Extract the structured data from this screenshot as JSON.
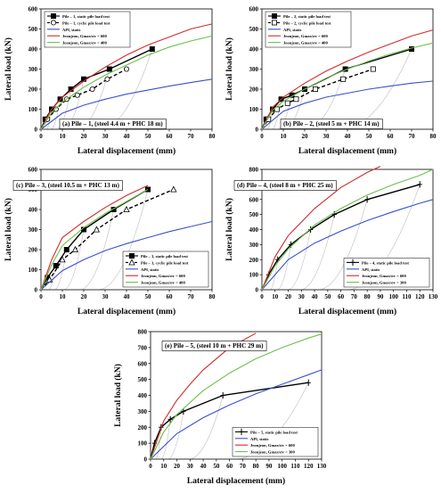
{
  "chart_data": [
    {
      "type": "line",
      "panel_label": "(a) Pile – 1, (steel 4.4 m + PHC 18 m)",
      "xlabel": "Lateral displacement (mm)",
      "ylabel": "Lateral load (kN)",
      "xlim": [
        0,
        80
      ],
      "ylim": [
        0,
        600
      ],
      "xticks": [
        0,
        10,
        20,
        30,
        40,
        50,
        60,
        70,
        80
      ],
      "yticks": [
        0,
        100,
        200,
        300,
        400,
        500,
        600
      ],
      "grid": false,
      "legend_position": "top-left",
      "series": [
        {
          "name": "Pile – 1, static pile load test",
          "color": "#000000",
          "style": "solid",
          "marker": "square-filled",
          "x": [
            0,
            2,
            5,
            9,
            14,
            20,
            32,
            52
          ],
          "y": [
            0,
            50,
            100,
            150,
            200,
            250,
            300,
            400
          ]
        },
        {
          "name": "Pile – 1, cyclic pile load test",
          "color": "#000000",
          "style": "dashed",
          "marker": "circle-open",
          "x": [
            0,
            3,
            7,
            12,
            17,
            24,
            31,
            40
          ],
          "y": [
            0,
            50,
            100,
            150,
            170,
            200,
            250,
            300
          ]
        },
        {
          "name": "API, static",
          "color": "#3a4fd0",
          "style": "solid",
          "x": [
            0,
            10,
            20,
            30,
            40,
            50,
            60,
            70,
            80
          ],
          "y": [
            0,
            80,
            120,
            150,
            175,
            195,
            215,
            233,
            250
          ]
        },
        {
          "name": "Jeonjeon, Gmax/σv = 600",
          "color": "#d02a2a",
          "style": "solid",
          "x": [
            0,
            5,
            10,
            20,
            30,
            40,
            50,
            60,
            70,
            80
          ],
          "y": [
            0,
            100,
            160,
            240,
            310,
            370,
            420,
            460,
            500,
            525
          ]
        },
        {
          "name": "Jeonjeon, Gmax/σv = 400",
          "color": "#6cc04a",
          "style": "solid",
          "x": [
            0,
            5,
            10,
            20,
            30,
            40,
            50,
            60,
            70,
            80
          ],
          "y": [
            0,
            85,
            135,
            210,
            270,
            320,
            370,
            410,
            440,
            465
          ]
        }
      ]
    },
    {
      "type": "line",
      "panel_label": "(b) Pile – 2, (steel 5 m + PHC 14 m)",
      "xlabel": "Lateral displacement (mm)",
      "ylabel": "Lateral load (kN)",
      "xlim": [
        0,
        80
      ],
      "ylim": [
        0,
        600
      ],
      "xticks": [
        0,
        10,
        20,
        30,
        40,
        50,
        60,
        70,
        80
      ],
      "yticks": [
        0,
        100,
        200,
        300,
        400,
        500,
        600
      ],
      "grid": false,
      "legend_position": "top-left",
      "series": [
        {
          "name": "Pile – 2, static pile load test",
          "color": "#000000",
          "style": "solid",
          "marker": "square-filled",
          "x": [
            0,
            2,
            5,
            9,
            14,
            20,
            39,
            70
          ],
          "y": [
            0,
            50,
            100,
            150,
            170,
            200,
            300,
            400
          ]
        },
        {
          "name": "Pile – 2, cyclic pile load test",
          "color": "#000000",
          "style": "dashed",
          "marker": "square-open",
          "x": [
            0,
            3,
            7,
            12,
            16,
            25,
            38,
            52
          ],
          "y": [
            0,
            50,
            100,
            130,
            150,
            200,
            250,
            300
          ]
        },
        {
          "name": "API, static",
          "color": "#3a4fd0",
          "style": "solid",
          "x": [
            0,
            10,
            20,
            30,
            40,
            50,
            60,
            70,
            80
          ],
          "y": [
            0,
            90,
            130,
            160,
            180,
            200,
            215,
            230,
            240
          ]
        },
        {
          "name": "Jeonjeon, Gmax/σv = 600",
          "color": "#d02a2a",
          "style": "solid",
          "x": [
            0,
            5,
            10,
            20,
            30,
            40,
            50,
            60,
            70,
            80
          ],
          "y": [
            0,
            110,
            160,
            230,
            290,
            340,
            385,
            425,
            465,
            495
          ]
        },
        {
          "name": "Jeonjeon, Gmax/σv = 400",
          "color": "#6cc04a",
          "style": "solid",
          "x": [
            0,
            5,
            10,
            20,
            30,
            40,
            50,
            60,
            70,
            80
          ],
          "y": [
            0,
            95,
            140,
            200,
            255,
            300,
            340,
            375,
            405,
            430
          ]
        }
      ]
    },
    {
      "type": "line",
      "panel_label": "(c) Pile – 3, (steel 10.5 m + PHC 13 m)",
      "xlabel": "Lateral displacement (mm)",
      "ylabel": "Lateral load (kN)",
      "xlim": [
        0,
        80
      ],
      "ylim": [
        0,
        600
      ],
      "xticks": [
        0,
        10,
        20,
        30,
        40,
        50,
        60,
        70,
        80
      ],
      "yticks": [
        0,
        100,
        200,
        300,
        400,
        500,
        600
      ],
      "grid": false,
      "legend_position": "bottom-right",
      "series": [
        {
          "name": "Pile – 3, static pile load test",
          "color": "#000000",
          "style": "solid",
          "marker": "square-filled",
          "x": [
            0,
            3,
            7,
            12,
            20,
            34,
            50
          ],
          "y": [
            0,
            60,
            120,
            200,
            300,
            400,
            500
          ]
        },
        {
          "name": "Pile – 3, cyclic pile load test",
          "color": "#000000",
          "style": "dashed",
          "marker": "triangle-open",
          "x": [
            0,
            4,
            10,
            16,
            26,
            40,
            62
          ],
          "y": [
            0,
            50,
            150,
            200,
            300,
            400,
            500
          ]
        },
        {
          "name": "API, static",
          "color": "#3a4fd0",
          "style": "solid",
          "x": [
            0,
            10,
            20,
            30,
            40,
            50,
            60,
            70,
            80
          ],
          "y": [
            0,
            95,
            150,
            195,
            230,
            260,
            290,
            315,
            340
          ]
        },
        {
          "name": "Jeonjeon, Gmax/σv = 600",
          "color": "#d02a2a",
          "style": "solid",
          "x": [
            0,
            5,
            10,
            20,
            30,
            40,
            50
          ],
          "y": [
            0,
            150,
            260,
            340,
            410,
            470,
            520
          ]
        },
        {
          "name": "Jeonjeon, Gmax/σv = 400",
          "color": "#6cc04a",
          "style": "solid",
          "x": [
            0,
            5,
            10,
            20,
            30,
            40,
            50
          ],
          "y": [
            0,
            125,
            220,
            310,
            380,
            440,
            500
          ]
        }
      ]
    },
    {
      "type": "line",
      "panel_label": "(d) Pile – 4, (steel 8 m + PHC 25 m)",
      "xlabel": "Lateral displacement (mm)",
      "ylabel": "Lateral load (kN)",
      "xlim": [
        0,
        130
      ],
      "ylim": [
        0,
        800
      ],
      "xticks": [
        0,
        10,
        20,
        30,
        40,
        50,
        60,
        70,
        80,
        90,
        100,
        110,
        120,
        130
      ],
      "yticks": [
        0,
        100,
        200,
        300,
        400,
        500,
        600,
        700,
        800
      ],
      "grid": false,
      "legend_position": "bottom-right",
      "series": [
        {
          "name": "Pile – 4, static pile load test",
          "color": "#000000",
          "style": "solid",
          "marker": "cross",
          "x": [
            0,
            5,
            12,
            22,
            37,
            55,
            80,
            120
          ],
          "y": [
            0,
            100,
            200,
            300,
            400,
            500,
            600,
            700
          ]
        },
        {
          "name": "API, static",
          "color": "#3a4fd0",
          "style": "solid",
          "x": [
            0,
            20,
            40,
            60,
            80,
            100,
            120,
            130
          ],
          "y": [
            0,
            200,
            310,
            390,
            460,
            520,
            575,
            600
          ]
        },
        {
          "name": "Jeonjeon, Gmax/σv = 600",
          "color": "#d02a2a",
          "style": "solid",
          "x": [
            0,
            10,
            20,
            40,
            60,
            80,
            90
          ],
          "y": [
            0,
            220,
            360,
            540,
            680,
            780,
            820
          ]
        },
        {
          "name": "Jeonjeon, Gmax/σv = 300",
          "color": "#6cc04a",
          "style": "solid",
          "x": [
            0,
            10,
            20,
            40,
            60,
            80,
            100,
            120,
            130
          ],
          "y": [
            0,
            160,
            270,
            430,
            540,
            630,
            700,
            760,
            800
          ]
        }
      ]
    },
    {
      "type": "line",
      "panel_label": "(e) Pile – 5, (steel 10 m + PHC 29 m)",
      "xlabel": "Lateral displacement (mm)",
      "ylabel": "Lateral load (kN)",
      "xlim": [
        0,
        130
      ],
      "ylim": [
        0,
        800
      ],
      "xticks": [
        0,
        10,
        20,
        30,
        40,
        50,
        60,
        70,
        80,
        90,
        100,
        110,
        120,
        130
      ],
      "yticks": [
        0,
        100,
        200,
        300,
        400,
        500,
        600,
        700,
        800
      ],
      "grid": false,
      "legend_position": "bottom-right",
      "series": [
        {
          "name": "Pile – 5, static pile load test",
          "color": "#000000",
          "style": "solid",
          "marker": "cross",
          "x": [
            0,
            3,
            8,
            15,
            25,
            55,
            120
          ],
          "y": [
            0,
            100,
            200,
            250,
            300,
            400,
            480
          ]
        },
        {
          "name": "API, static",
          "color": "#3a4fd0",
          "style": "solid",
          "x": [
            0,
            20,
            40,
            60,
            80,
            100,
            120,
            130
          ],
          "y": [
            0,
            160,
            260,
            340,
            410,
            470,
            530,
            560
          ]
        },
        {
          "name": "Jeonjeon, Gmax/σv = 600",
          "color": "#d02a2a",
          "style": "solid",
          "x": [
            0,
            10,
            20,
            30,
            40,
            60,
            80
          ],
          "y": [
            0,
            240,
            370,
            470,
            560,
            700,
            790
          ]
        },
        {
          "name": "Jeonjeon, Gmax/σv = 300",
          "color": "#6cc04a",
          "style": "solid",
          "x": [
            0,
            10,
            20,
            40,
            60,
            80,
            100,
            120,
            130
          ],
          "y": [
            0,
            170,
            280,
            430,
            540,
            630,
            700,
            760,
            785
          ]
        }
      ]
    }
  ]
}
